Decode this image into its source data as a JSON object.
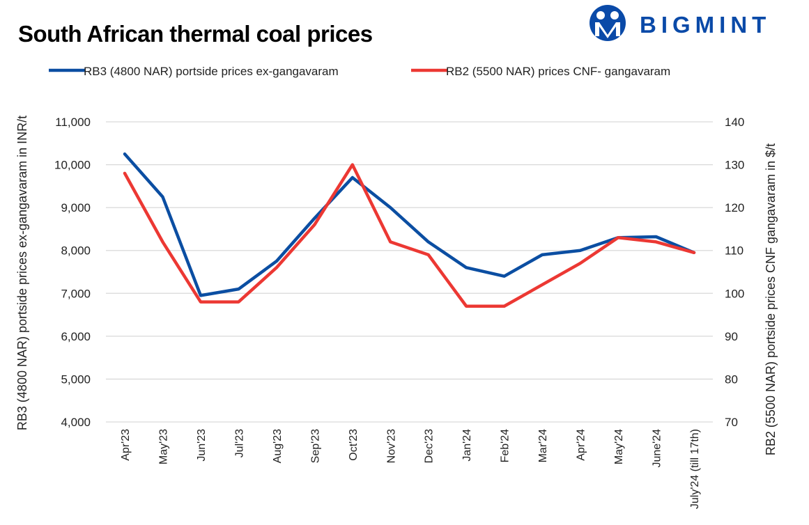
{
  "chart_data": {
    "type": "line",
    "title": "South African thermal coal prices",
    "categories": [
      "Apr'23",
      "May'23",
      "Jun'23",
      "Jul'23",
      "Aug'23",
      "Sep'23",
      "Oct'23",
      "Nov'23",
      "Dec'23",
      "Jan'24",
      "Feb'24",
      "Mar'24",
      "Apr'24",
      "May'24",
      "June'24",
      "July'24 (till 17th)"
    ],
    "series": [
      {
        "name": "RB3 (4800 NAR) portside prices ex-gangavaram",
        "axis": "left",
        "color": "#0b4ea2",
        "values": [
          10250,
          9250,
          6950,
          7100,
          7750,
          8750,
          9700,
          9000,
          8200,
          7600,
          7400,
          7900,
          8000,
          8300,
          8320,
          7950
        ]
      },
      {
        "name": "RB2 (5500 NAR) prices CNF- gangavaram",
        "axis": "right",
        "color": "#ec3833",
        "values": [
          128,
          112,
          98,
          98,
          106,
          116,
          130,
          112,
          109,
          97,
          97,
          102,
          107,
          113,
          112,
          109.5
        ]
      }
    ],
    "ylabel": "RB3 (4800 NAR) portside prices ex-gangavaram in INR/t",
    "y2label": "RB2 (5500 NAR) portside prices CNF  gangavaram  in $/t",
    "ylim": [
      4000,
      11000
    ],
    "y2lim": [
      70,
      140
    ],
    "yticks": [
      "4,000",
      "5,000",
      "6,000",
      "7,000",
      "8,000",
      "9,000",
      "10,000",
      "11,000"
    ],
    "y2ticks": [
      "70",
      "80",
      "90",
      "100",
      "110",
      "120",
      "130",
      "140"
    ],
    "grid": true,
    "legend": "top"
  },
  "logo": {
    "text": "BIGMINT",
    "color": "#0a4aa8"
  }
}
